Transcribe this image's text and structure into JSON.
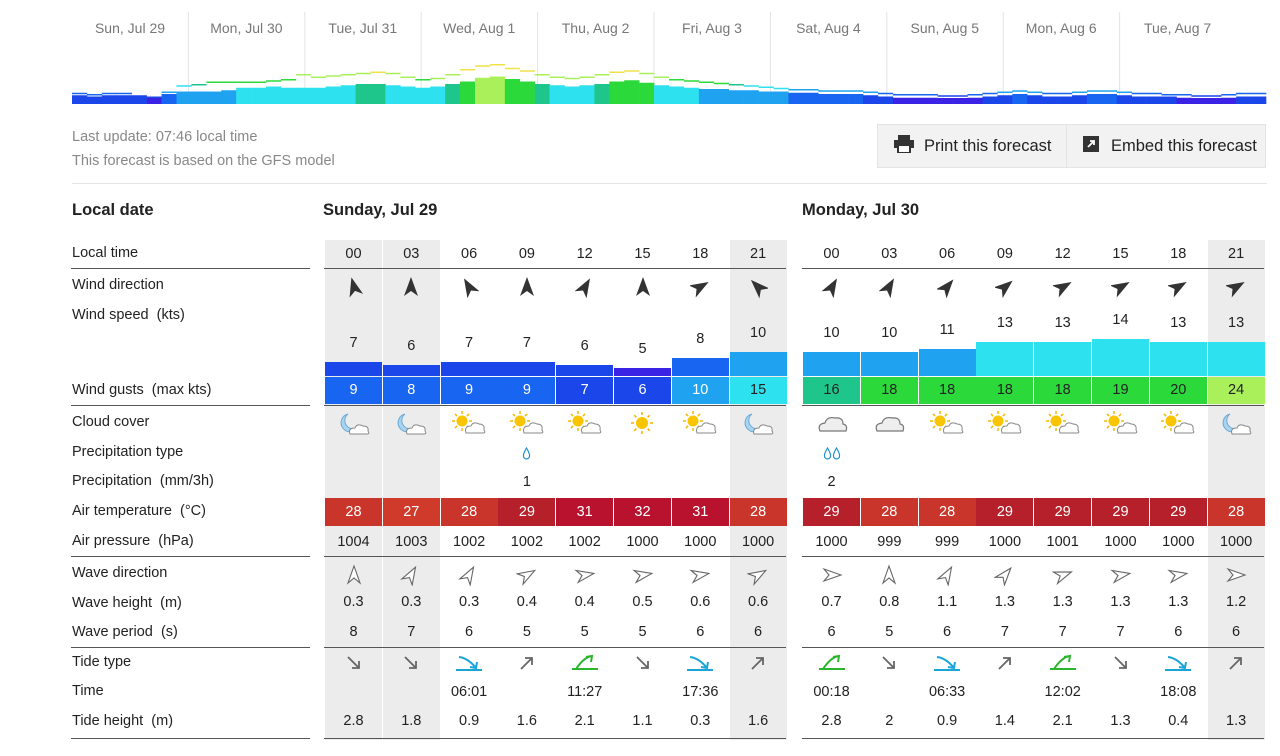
{
  "overview": {
    "days": [
      "Sun, Jul 29",
      "Mon, Jul 30",
      "Tue, Jul 31",
      "Wed, Aug 1",
      "Thu, Aug 2",
      "Fri, Aug 3",
      "Sat, Aug 4",
      "Sun, Aug 5",
      "Mon, Aug 6",
      "Tue, Aug 7"
    ],
    "speeds": [
      7,
      6,
      7,
      7,
      6,
      5,
      8,
      10,
      10,
      10,
      11,
      13,
      13,
      14,
      13,
      13,
      13,
      14,
      15,
      16,
      16,
      15,
      14,
      13,
      14,
      16,
      18,
      21,
      22,
      20,
      18,
      16,
      15,
      14,
      15,
      16,
      18,
      19,
      17,
      15,
      14,
      13,
      12,
      12,
      11,
      11,
      10,
      10,
      9,
      9,
      8,
      8,
      8,
      7,
      6,
      5,
      5,
      5,
      4,
      4,
      5,
      6,
      7,
      8,
      7,
      6,
      6,
      7,
      8,
      8,
      7,
      6,
      6,
      6,
      5,
      4,
      4,
      5,
      6,
      6
    ],
    "gusts": [
      9,
      8,
      9,
      9,
      7,
      6,
      10,
      15,
      16,
      18,
      18,
      18,
      18,
      19,
      20,
      24,
      22,
      23,
      24,
      25,
      26,
      25,
      22,
      20,
      21,
      24,
      28,
      31,
      32,
      29,
      27,
      24,
      22,
      21,
      22,
      24,
      26,
      27,
      25,
      22,
      20,
      19,
      18,
      17,
      16,
      15,
      14,
      13,
      12,
      12,
      11,
      11,
      11,
      10,
      9,
      8,
      8,
      8,
      7,
      7,
      8,
      9,
      10,
      11,
      10,
      9,
      9,
      10,
      11,
      11,
      10,
      9,
      9,
      8,
      8,
      7,
      7,
      8,
      9,
      9
    ]
  },
  "meta": {
    "last_update": "Last update: 07:46 local time",
    "model": "This forecast is based on the GFS model"
  },
  "buttons": {
    "print": "Print this forecast",
    "embed": "Embed this forecast"
  },
  "labels": {
    "local_date": "Local date",
    "local_time": "Local time",
    "wind_direction": "Wind direction",
    "wind_speed": "Wind speed",
    "wind_speed_unit": "(kts)",
    "wind_gusts": "Wind gusts",
    "wind_gusts_unit": "(max kts)",
    "cloud_cover": "Cloud cover",
    "precip_type": "Precipitation type",
    "precip": "Precipitation",
    "precip_unit": "(mm/3h)",
    "air_temp": "Air temperature",
    "air_temp_unit": "(°C)",
    "air_pressure": "Air pressure",
    "air_pressure_unit": "(hPa)",
    "wave_direction": "Wave direction",
    "wave_height": "Wave height",
    "wave_height_unit": "(m)",
    "wave_period": "Wave period",
    "wave_period_unit": "(s)",
    "tide_type": "Tide type",
    "time": "Time",
    "tide_height": "Tide height",
    "tide_height_unit": "(m)"
  },
  "days": [
    {
      "title": "Sunday, Jul 29",
      "hours": [
        "00",
        "03",
        "06",
        "09",
        "12",
        "15",
        "18",
        "21"
      ],
      "wind_dir_deg": [
        165,
        180,
        150,
        180,
        210,
        180,
        240,
        135
      ],
      "wind_speed": [
        7,
        6,
        7,
        7,
        6,
        5,
        8,
        10
      ],
      "wind_gusts": [
        9,
        8,
        9,
        9,
        7,
        6,
        10,
        15
      ],
      "cloud": [
        "moon-cloud",
        "moon-cloud",
        "sun-cloud",
        "sun-cloud",
        "sun-cloud",
        "sun",
        "sun-cloud",
        "moon-cloud"
      ],
      "precip_drops": [
        0,
        0,
        0,
        1,
        0,
        0,
        0,
        0
      ],
      "precip": [
        "",
        "",
        "",
        "1",
        "",
        "",
        "",
        ""
      ],
      "air_temp": [
        28,
        27,
        28,
        29,
        31,
        32,
        31,
        28
      ],
      "air_pressure": [
        1004,
        1003,
        1002,
        1002,
        1002,
        1000,
        1000,
        1000
      ],
      "wave_dir_deg": [
        0,
        30,
        30,
        60,
        80,
        80,
        80,
        60
      ],
      "wave_height": [
        "0.3",
        "0.3",
        "0.3",
        "0.4",
        "0.4",
        "0.5",
        "0.6",
        "0.6"
      ],
      "wave_period": [
        8,
        7,
        6,
        5,
        5,
        5,
        6,
        6
      ],
      "tide_type": [
        "falling",
        "falling",
        "low",
        "rising",
        "high",
        "falling",
        "low",
        "rising"
      ],
      "tide_time": [
        "",
        "",
        "06:01",
        "",
        "11:27",
        "",
        "17:36",
        ""
      ],
      "tide_height": [
        "2.8",
        "1.8",
        "0.9",
        "1.6",
        "2.1",
        "1.1",
        "0.3",
        "1.6"
      ]
    },
    {
      "title": "Monday, Jul 30",
      "hours": [
        "00",
        "03",
        "06",
        "09",
        "12",
        "15",
        "18",
        "21"
      ],
      "wind_dir_deg": [
        210,
        210,
        220,
        230,
        240,
        240,
        240,
        240
      ],
      "wind_speed": [
        10,
        10,
        11,
        13,
        13,
        14,
        13,
        13
      ],
      "wind_gusts": [
        16,
        18,
        18,
        18,
        18,
        19,
        20,
        24
      ],
      "cloud": [
        "cloud",
        "cloud",
        "sun-cloud",
        "sun-cloud",
        "sun-cloud",
        "sun-cloud",
        "sun-cloud",
        "moon-cloud"
      ],
      "precip_drops": [
        2,
        0,
        0,
        0,
        0,
        0,
        0,
        0
      ],
      "precip": [
        "2",
        "",
        "",
        "",
        "",
        "",
        "",
        ""
      ],
      "air_temp": [
        29,
        28,
        28,
        29,
        29,
        29,
        29,
        28
      ],
      "air_pressure": [
        1000,
        999,
        999,
        1000,
        1001,
        1000,
        1000,
        1000
      ],
      "wave_dir_deg": [
        90,
        0,
        30,
        40,
        70,
        80,
        80,
        90
      ],
      "wave_height": [
        "0.7",
        "0.8",
        "1.1",
        "1.3",
        "1.3",
        "1.3",
        "1.3",
        "1.2"
      ],
      "wave_period": [
        6,
        5,
        6,
        7,
        7,
        7,
        6,
        6
      ],
      "tide_type": [
        "high",
        "falling",
        "low",
        "rising",
        "high",
        "falling",
        "low",
        "rising"
      ],
      "tide_time": [
        "00:18",
        "",
        "06:33",
        "",
        "12:02",
        "",
        "18:08",
        ""
      ],
      "tide_height": [
        "2.8",
        "2",
        "0.9",
        "1.4",
        "2.1",
        "1.3",
        "0.4",
        "1.3"
      ]
    }
  ]
}
